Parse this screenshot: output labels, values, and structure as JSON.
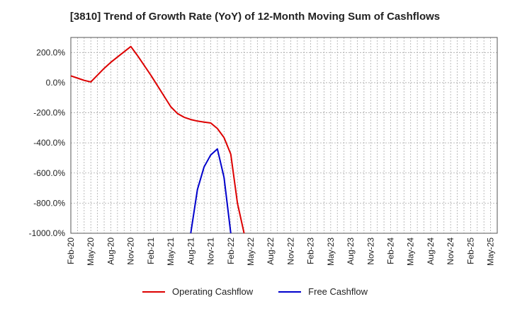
{
  "chart_data": {
    "type": "line",
    "title": "[3810]  Trend of Growth Rate (YoY) of 12-Month Moving Sum of Cashflows",
    "xlabel": "",
    "ylabel": "",
    "ylim": [
      -1000,
      300
    ],
    "yticks": [
      200,
      0,
      -200,
      -400,
      -600,
      -800,
      -1000
    ],
    "ytick_labels": [
      "200.0%",
      "0.0%",
      "-200.0%",
      "-400.0%",
      "-600.0%",
      "-800.0%",
      "-1000.0%"
    ],
    "x_categories": [
      "Feb-20",
      "Mar-20",
      "Apr-20",
      "May-20",
      "Jun-20",
      "Jul-20",
      "Aug-20",
      "Sep-20",
      "Oct-20",
      "Nov-20",
      "Dec-20",
      "Jan-21",
      "Feb-21",
      "Mar-21",
      "Apr-21",
      "May-21",
      "Jun-21",
      "Jul-21",
      "Aug-21",
      "Sep-21",
      "Oct-21",
      "Nov-21",
      "Dec-21",
      "Jan-22",
      "Feb-22",
      "Mar-22",
      "Apr-22",
      "May-22",
      "Jun-22",
      "Jul-22",
      "Aug-22",
      "Sep-22",
      "Oct-22",
      "Nov-22",
      "Dec-22",
      "Jan-23",
      "Feb-23",
      "Mar-23",
      "Apr-23",
      "May-23",
      "Jun-23",
      "Jul-23",
      "Aug-23",
      "Sep-23",
      "Oct-23",
      "Nov-23",
      "Dec-23",
      "Jan-24",
      "Feb-24",
      "Mar-24",
      "Apr-24",
      "May-24",
      "Jun-24",
      "Jul-24",
      "Aug-24",
      "Sep-24",
      "Oct-24",
      "Nov-24",
      "Dec-24",
      "Jan-25",
      "Feb-25",
      "Mar-25",
      "Apr-25",
      "May-25"
    ],
    "x_tick_labels": [
      "Feb-20",
      "May-20",
      "Aug-20",
      "Nov-20",
      "Feb-21",
      "May-21",
      "Aug-21",
      "Nov-21",
      "Feb-22",
      "May-22",
      "Aug-22",
      "Nov-22",
      "Feb-23",
      "May-23",
      "Aug-23",
      "Nov-23",
      "Feb-24",
      "May-24",
      "Aug-24",
      "Nov-24",
      "Feb-25",
      "May-25"
    ],
    "grid": true,
    "legend_position": "bottom",
    "series": [
      {
        "name": "Operating Cashflow",
        "color": "#dd0000",
        "values": [
          45,
          30,
          15,
          5,
          50,
          95,
          135,
          170,
          205,
          240,
          180,
          115,
          50,
          -20,
          -90,
          -160,
          -205,
          -230,
          -245,
          -255,
          -262,
          -268,
          -305,
          -365,
          -475,
          -800,
          -1000
        ]
      },
      {
        "name": "Free Cashflow",
        "color": "#0000cc",
        "start_index": 18,
        "values": [
          -1000,
          -710,
          -560,
          -480,
          -440,
          -630,
          -1000
        ]
      }
    ]
  }
}
